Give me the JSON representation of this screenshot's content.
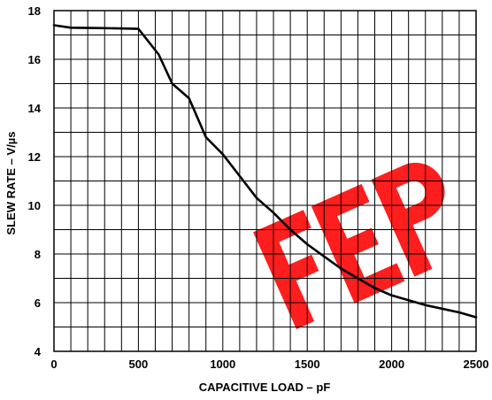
{
  "chart_data": {
    "type": "line",
    "xlabel": "CAPACITIVE LOAD – pF",
    "ylabel": "SLEW RATE – V/µs",
    "xlim": [
      0,
      2500
    ],
    "ylim": [
      4,
      18
    ],
    "x_ticks": [
      "0",
      "500",
      "1000",
      "1500",
      "2000",
      "2500"
    ],
    "y_ticks": [
      "4",
      "6",
      "8",
      "10",
      "12",
      "14",
      "16",
      "18"
    ],
    "grid": true,
    "series": [
      {
        "color": "#000000",
        "points": [
          [
            0,
            17.4
          ],
          [
            100,
            17.3
          ],
          [
            300,
            17.28
          ],
          [
            500,
            17.25
          ],
          [
            620,
            16.2
          ],
          [
            700,
            15.0
          ],
          [
            800,
            14.4
          ],
          [
            900,
            12.8
          ],
          [
            1000,
            12.1
          ],
          [
            1100,
            11.2
          ],
          [
            1200,
            10.3
          ],
          [
            1300,
            9.7
          ],
          [
            1400,
            9.0
          ],
          [
            1500,
            8.4
          ],
          [
            1600,
            7.9
          ],
          [
            1700,
            7.4
          ],
          [
            1800,
            7.0
          ],
          [
            1900,
            6.6
          ],
          [
            2000,
            6.3
          ],
          [
            2100,
            6.1
          ],
          [
            2200,
            5.9
          ],
          [
            2300,
            5.75
          ],
          [
            2400,
            5.6
          ],
          [
            2500,
            5.4
          ]
        ]
      }
    ],
    "watermark": {
      "text": "FEP",
      "color": "#ff0000"
    }
  }
}
